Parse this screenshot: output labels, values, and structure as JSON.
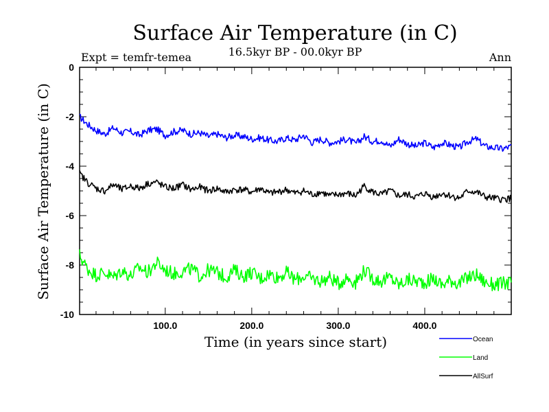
{
  "chart_data": {
    "type": "line",
    "title": "Surface Air Temperature (in C)",
    "subtitle": "16.5kyr BP - 00.0kyr BP",
    "expt_label": "Expt = temfr-temea",
    "season_label": "Ann",
    "xlabel": "Time (in years since start)",
    "ylabel": "Surface Air Temperature (in C)",
    "xlim": [
      1,
      500
    ],
    "ylim": [
      -10,
      0
    ],
    "x_ticks": [
      100,
      200,
      300,
      400
    ],
    "x_tick_labels": [
      "100.0",
      "200.0",
      "300.0",
      "400.0"
    ],
    "y_ticks": [
      0,
      -2,
      -4,
      -6,
      -8,
      -10
    ],
    "y_tick_labels": [
      "0",
      "-2",
      "-4",
      "-6",
      "-8",
      "-10"
    ],
    "legend_position": "bottom-right",
    "series": [
      {
        "name": "Ocean",
        "color": "#0000ff",
        "x": [
          1,
          10,
          20,
          30,
          40,
          50,
          60,
          70,
          80,
          90,
          100,
          110,
          120,
          130,
          140,
          150,
          160,
          170,
          180,
          190,
          200,
          210,
          220,
          230,
          240,
          250,
          260,
          270,
          280,
          290,
          300,
          310,
          320,
          330,
          340,
          350,
          360,
          370,
          380,
          390,
          400,
          410,
          420,
          430,
          440,
          450,
          460,
          470,
          480,
          490,
          500
        ],
        "values": [
          -2.0,
          -2.3,
          -2.55,
          -2.7,
          -2.45,
          -2.65,
          -2.6,
          -2.75,
          -2.55,
          -2.5,
          -2.75,
          -2.6,
          -2.55,
          -2.7,
          -2.65,
          -2.8,
          -2.7,
          -2.85,
          -2.75,
          -2.8,
          -2.9,
          -2.85,
          -2.95,
          -3.0,
          -2.85,
          -2.95,
          -2.75,
          -3.05,
          -2.9,
          -3.05,
          -3.0,
          -2.9,
          -3.1,
          -2.8,
          -3.0,
          -2.95,
          -3.2,
          -2.9,
          -3.1,
          -3.2,
          -3.05,
          -3.25,
          -3.05,
          -3.15,
          -3.25,
          -3.0,
          -2.9,
          -3.2,
          -3.25,
          -3.3,
          -3.2
        ]
      },
      {
        "name": "Land",
        "color": "#00ff00",
        "x": [
          1,
          10,
          20,
          30,
          40,
          50,
          60,
          70,
          80,
          90,
          100,
          110,
          120,
          130,
          140,
          150,
          160,
          170,
          180,
          190,
          200,
          210,
          220,
          230,
          240,
          250,
          260,
          270,
          280,
          290,
          300,
          310,
          320,
          330,
          340,
          350,
          360,
          370,
          380,
          390,
          400,
          410,
          420,
          430,
          440,
          450,
          460,
          470,
          480,
          490,
          500
        ],
        "values": [
          -7.6,
          -8.15,
          -8.4,
          -8.3,
          -8.5,
          -8.2,
          -8.45,
          -8.1,
          -8.3,
          -7.9,
          -8.2,
          -8.35,
          -8.25,
          -8.15,
          -8.45,
          -8.2,
          -8.3,
          -8.5,
          -8.2,
          -8.45,
          -8.3,
          -8.55,
          -8.35,
          -8.5,
          -8.3,
          -8.6,
          -8.45,
          -8.55,
          -8.65,
          -8.5,
          -8.75,
          -8.5,
          -8.7,
          -8.2,
          -8.55,
          -8.65,
          -8.5,
          -8.8,
          -8.6,
          -8.65,
          -8.7,
          -8.55,
          -8.8,
          -8.6,
          -8.75,
          -8.5,
          -8.4,
          -8.7,
          -8.8,
          -8.75,
          -8.7
        ]
      },
      {
        "name": "AllSurf",
        "color": "#000000",
        "x": [
          1,
          10,
          20,
          30,
          40,
          50,
          60,
          70,
          80,
          90,
          100,
          110,
          120,
          130,
          140,
          150,
          160,
          170,
          180,
          190,
          200,
          210,
          220,
          230,
          240,
          250,
          260,
          270,
          280,
          290,
          300,
          310,
          320,
          330,
          340,
          350,
          360,
          370,
          380,
          390,
          400,
          410,
          420,
          430,
          440,
          450,
          460,
          470,
          480,
          490,
          500
        ],
        "values": [
          -4.3,
          -4.65,
          -4.9,
          -5.0,
          -4.75,
          -4.95,
          -4.8,
          -4.9,
          -4.7,
          -4.65,
          -4.85,
          -4.9,
          -4.75,
          -4.95,
          -4.85,
          -5.0,
          -4.9,
          -5.05,
          -4.95,
          -4.95,
          -5.05,
          -4.9,
          -5.1,
          -5.05,
          -4.95,
          -5.1,
          -5.0,
          -5.15,
          -5.05,
          -5.2,
          -5.15,
          -5.1,
          -5.2,
          -4.8,
          -5.05,
          -5.15,
          -5.0,
          -5.2,
          -5.15,
          -5.25,
          -5.1,
          -5.25,
          -5.1,
          -5.2,
          -5.3,
          -5.0,
          -5.05,
          -5.25,
          -5.3,
          -5.35,
          -5.3
        ]
      }
    ]
  }
}
